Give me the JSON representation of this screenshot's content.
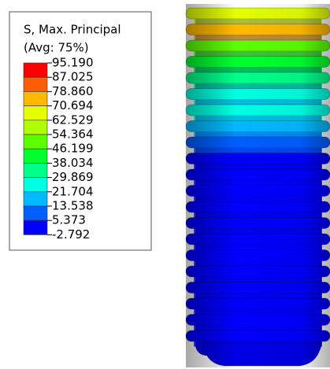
{
  "legend": {
    "title_lines": [
      "S, Max. Principal",
      "(Avg: 75%)"
    ],
    "labels": [
      "95.190",
      "87.025",
      "78.860",
      "70.694",
      "62.529",
      "54.364",
      "46.199",
      "38.034",
      "29.869",
      "21.704",
      "13.538",
      "5.373",
      "-2.792"
    ],
    "colors": [
      "#ff0000",
      "#ff5e00",
      "#ffb900",
      "#e3ff00",
      "#b0ff00",
      "#5cff00",
      "#00ff2f",
      "#00ff8a",
      "#00ffe3",
      "#00b9ff",
      "#005eff",
      "#0000ff"
    ]
  }
}
